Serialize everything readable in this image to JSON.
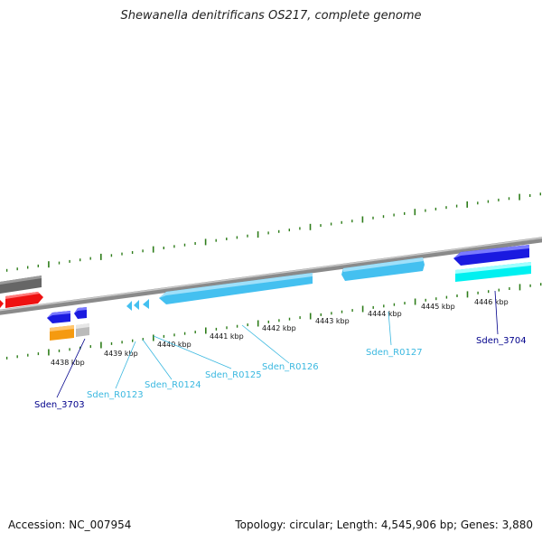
{
  "title": "Shewanella denitrificans OS217, complete genome",
  "footer": {
    "accession": "Accession: NC_007954",
    "summary": "Topology: circular; Length: 4,545,906 bp; Genes: 3,880"
  },
  "colors": {
    "backbone": "#8a8a8a",
    "tick": "#2e7d1a",
    "rna_gene": "#44c0f0",
    "rna_label": "#3ab8e0",
    "cds_label": "#00008b",
    "blue": "#1a1ae0",
    "cyan": "#00f0f0",
    "red": "#ee1111",
    "gray": "#666666",
    "orange": "#f59a10",
    "lightgray": "#bbbbbb"
  },
  "scale": {
    "labels": [
      "4438 kbp",
      "4439 kbp",
      "4440 kbp",
      "4441 kbp",
      "4442 kbp",
      "4443 kbp",
      "4444 kbp",
      "4445 kbp",
      "4446 kbp"
    ]
  },
  "gene_labels": [
    {
      "text": "Sden_3703",
      "kind": "cds"
    },
    {
      "text": "Sden_R0123",
      "kind": "rna"
    },
    {
      "text": "Sden_R0124",
      "kind": "rna"
    },
    {
      "text": "Sden_R0125",
      "kind": "rna"
    },
    {
      "text": "Sden_R0126",
      "kind": "rna"
    },
    {
      "text": "Sden_R0127",
      "kind": "rna"
    },
    {
      "text": "Sden_3704",
      "kind": "cds"
    }
  ]
}
